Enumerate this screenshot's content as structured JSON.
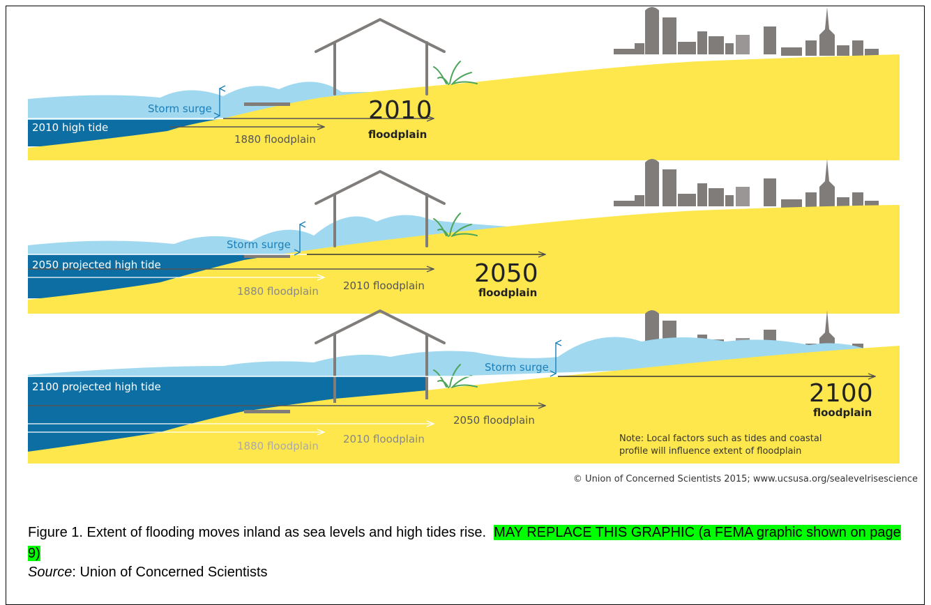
{
  "panels": [
    {
      "high_tide_label": "2010 high tide",
      "storm_surge_label": "Storm surge",
      "floodplain_year": "2010",
      "floodplain_word": "floodplain",
      "prior_floodplains": [
        "1880 floodplain"
      ]
    },
    {
      "high_tide_label": "2050 projected high tide",
      "storm_surge_label": "Storm surge",
      "floodplain_year": "2050",
      "floodplain_word": "floodplain",
      "prior_floodplains": [
        "1880 floodplain",
        "2010 floodplain"
      ]
    },
    {
      "high_tide_label": "2100 projected high tide",
      "storm_surge_label": "Storm surge",
      "floodplain_year": "2100",
      "floodplain_word": "floodplain",
      "prior_floodplains": [
        "1880 floodplain",
        "2010 floodplain",
        "2050 floodplain"
      ],
      "note": "Note: Local factors such as tides and coastal",
      "note_line2": "profile will influence extent of floodplain"
    }
  ],
  "credit": "© Union of Concerned Scientists 2015; www.ucsusa.org/sealevelrisescience",
  "caption": {
    "text": "Figure 1. Extent of flooding moves inland as sea levels and high tides rise.",
    "highlight": "MAY REPLACE THIS GRAPHIC (a FEMA graphic shown on page 9)",
    "source_label": "Source",
    "source_text": ": Union of Concerned Scientists"
  },
  "colors": {
    "land": "#fde74c",
    "surge": "#9fd8ef",
    "tide": "#0d6ea3",
    "structure": "#807c7a",
    "label_blue": "#1a7fba",
    "highlight": "#00ff00"
  }
}
